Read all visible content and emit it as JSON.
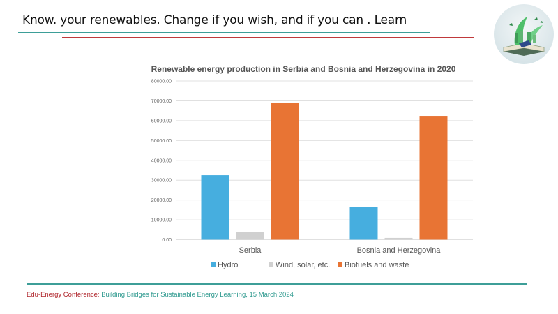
{
  "header": {
    "title": "Know. your renewables. Change if you wish, and if you can . Learn"
  },
  "colors": {
    "teal_line": "#3d9e98",
    "red_line": "#c0393b",
    "hydro": "#46aedf",
    "wind": "#d0d0d0",
    "biofuels": "#e87434"
  },
  "logo": {
    "icon": "book-with-green-city-logo"
  },
  "chart_data": {
    "type": "bar",
    "title": "Renewable energy production in Serbia and Bosnia and Herzegovina in 2020",
    "xlabel": "",
    "ylabel": "",
    "categories": [
      "Serbia",
      "Bosnia and Herzegovina"
    ],
    "series": [
      {
        "name": "Hydro",
        "values": [
          32500,
          16400
        ]
      },
      {
        "name": "Wind, solar, etc.",
        "values": [
          3700,
          900
        ]
      },
      {
        "name": "Biofuels and waste",
        "values": [
          69100,
          62400
        ]
      }
    ],
    "ylim": [
      0,
      80000
    ],
    "yticks": [
      "0.00",
      "10000.00",
      "20000.00",
      "30000.00",
      "40000.00",
      "50000.00",
      "60000.00",
      "70000.00",
      "80000.00"
    ],
    "grid": true,
    "legend_position": "bottom"
  },
  "footer": {
    "conference": "Edu-Energy Conference:",
    "subtitle": " Building Bridges for Sustainable Energy Learning, 15 March 2024"
  }
}
